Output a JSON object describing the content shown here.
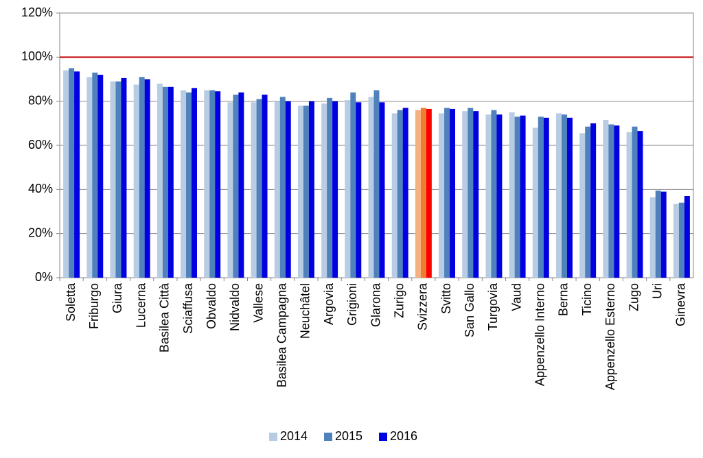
{
  "chart_data": {
    "type": "bar",
    "categories": [
      "Soletta",
      "Friburgo",
      "Giura",
      "Lucerna",
      "Basilea Città",
      "Sciaffusa",
      "Obvaldo",
      "Nidvaldo",
      "Vallese",
      "Basilea Campagna",
      "Neuchâtel",
      "Argovia",
      "Grigioni",
      "Glarona",
      "Zurigo",
      "Svizzera",
      "Svitto",
      "San Gallo",
      "Turgovia",
      "Vaud",
      "Appenzello Interno",
      "Berna",
      "Ticino",
      "Appenzello Esterno",
      "Zugo",
      "Uri",
      "Ginevra"
    ],
    "series": [
      {
        "name": "2014",
        "color": "#b8cce4",
        "highlight_color": "#f4b183",
        "values": [
          94,
          91,
          89,
          87.5,
          88,
          85,
          85,
          79.5,
          79.5,
          80,
          78,
          79,
          80.5,
          82,
          74.5,
          76,
          74.5,
          75.5,
          74,
          75,
          68,
          74.5,
          65.5,
          71.5,
          66,
          36.5,
          33.5
        ]
      },
      {
        "name": "2015",
        "color": "#4f81bd",
        "highlight_color": "#ed7d31",
        "values": [
          95,
          93,
          89,
          91,
          86.5,
          84,
          85,
          83,
          81,
          82,
          78,
          81.5,
          84,
          85,
          76,
          77,
          77,
          77,
          76,
          73,
          73,
          74,
          68.5,
          69.5,
          68.5,
          39.5,
          34
        ]
      },
      {
        "name": "2016",
        "color": "#0000e0",
        "highlight_color": "#ff0000",
        "values": [
          93.5,
          92,
          90.5,
          90,
          86.5,
          86,
          84.5,
          84,
          83,
          80,
          80,
          80,
          79.5,
          79.5,
          77,
          76.5,
          76.5,
          75.5,
          74,
          73.5,
          72.5,
          72.5,
          70,
          69,
          66.5,
          39,
          37
        ]
      }
    ],
    "highlight_category": "Svizzera",
    "reference_line": {
      "value": 100,
      "color": "#c00000"
    },
    "ylim": [
      0,
      120
    ],
    "yticks": [
      {
        "value": 0,
        "label": "0%"
      },
      {
        "value": 20,
        "label": "20%"
      },
      {
        "value": 40,
        "label": "40%"
      },
      {
        "value": 60,
        "label": "60%"
      },
      {
        "value": 80,
        "label": "80%"
      },
      {
        "value": 100,
        "label": "100%"
      },
      {
        "value": 120,
        "label": "120%"
      }
    ],
    "grid": true,
    "legend": "bottom"
  }
}
